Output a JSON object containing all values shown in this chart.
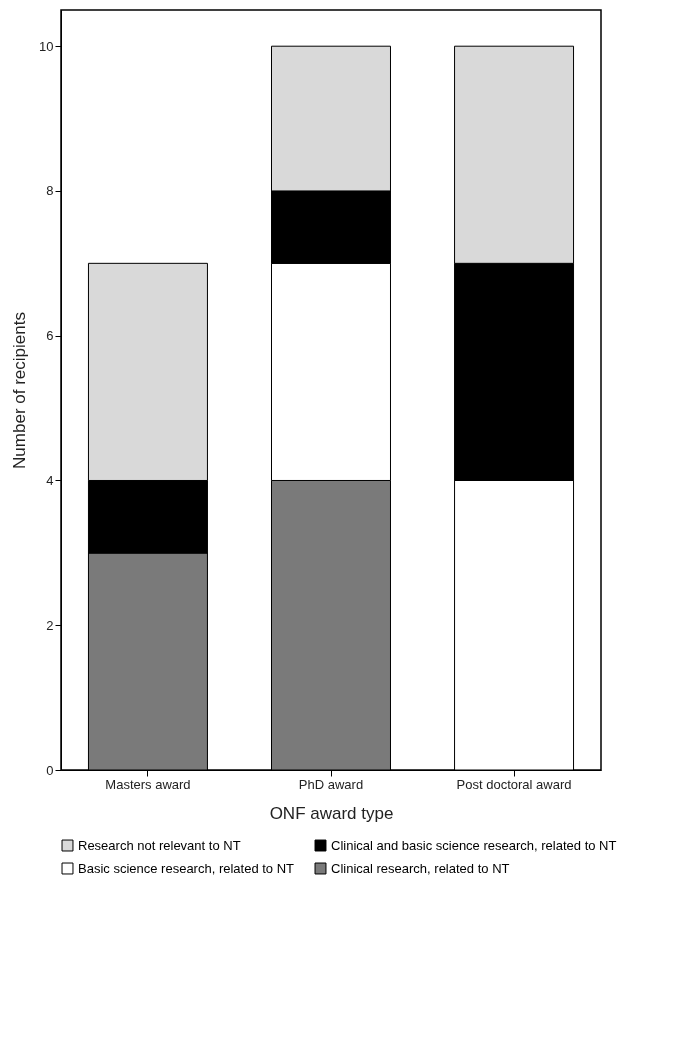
{
  "chart_data": {
    "type": "bar",
    "stacked": true,
    "xlabel": "ONF award type",
    "ylabel": "Number of recipients",
    "categories": [
      "Masters award",
      "PhD award",
      "Post doctoral award"
    ],
    "series": [
      {
        "name": "Clinical research, related to NT",
        "color": "#7a7a7a",
        "values": [
          3,
          4,
          0
        ]
      },
      {
        "name": "Basic science research, related to NT",
        "color": "#ffffff",
        "values": [
          0,
          3,
          4
        ]
      },
      {
        "name": "Clinical and basic science research, related to NT",
        "color": "#000000",
        "values": [
          1,
          1,
          3
        ]
      },
      {
        "name": "Research not relevant to NT",
        "color": "#d9d9d9",
        "values": [
          3,
          2,
          3
        ]
      }
    ],
    "ylim": [
      0,
      10.5
    ],
    "yticks": [
      0,
      2,
      4,
      6,
      8,
      10
    ],
    "grid": false,
    "legend": "bottom"
  }
}
